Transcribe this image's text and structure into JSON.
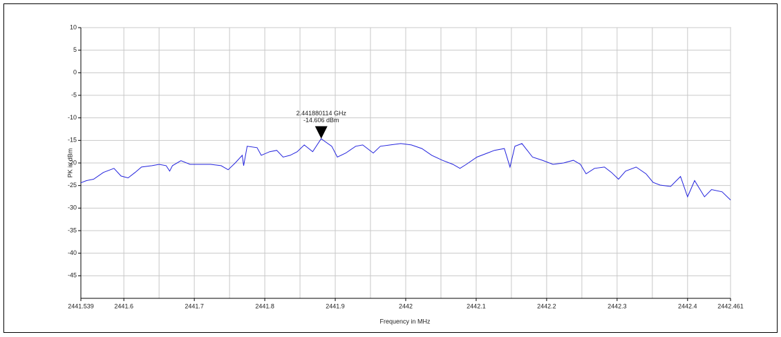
{
  "chart_data": {
    "type": "line",
    "xlabel": "Frequency in MHz",
    "ylabel": "PK in dBm",
    "xlim": [
      2441.539,
      2442.461
    ],
    "ylim": [
      -50,
      10
    ],
    "xticks": [
      2441.539,
      2441.6,
      2441.7,
      2441.8,
      2441.9,
      2442,
      2442.1,
      2442.2,
      2442.3,
      2442.4,
      2442.461
    ],
    "yticks": [
      10,
      5,
      0,
      -5,
      -10,
      -15,
      -20,
      -25,
      -30,
      -35,
      -40,
      -45
    ],
    "grid": true,
    "series": [
      {
        "color": "#2222dd",
        "x": [
          2441.539,
          2441.547,
          2441.557,
          2441.571,
          2441.586,
          2441.596,
          2441.606,
          2441.616,
          2441.625,
          2441.64,
          2441.65,
          2441.66,
          2441.665,
          2441.669,
          2441.681,
          2441.694,
          2441.709,
          2441.723,
          2441.738,
          2441.748,
          2441.758,
          2441.768,
          2441.77,
          2441.775,
          2441.789,
          2441.795,
          2441.807,
          2441.817,
          2441.826,
          2441.836,
          2441.846,
          2441.856,
          2441.868,
          2441.88,
          2441.885,
          2441.895,
          2441.903,
          2441.915,
          2441.929,
          2441.939,
          2441.954,
          2441.964,
          2441.978,
          2441.993,
          2442.008,
          2442.023,
          2442.037,
          2442.052,
          2442.067,
          2442.077,
          2442.086,
          2442.101,
          2442.116,
          2442.126,
          2442.14,
          2442.148,
          2442.155,
          2442.165,
          2442.18,
          2442.194,
          2442.209,
          2442.224,
          2442.238,
          2442.248,
          2442.256,
          2442.268,
          2442.282,
          2442.292,
          2442.302,
          2442.312,
          2442.327,
          2442.341,
          2442.351,
          2442.361,
          2442.376,
          2442.39,
          2442.4,
          2442.41,
          2442.424,
          2442.434,
          2442.449,
          2442.461
        ],
        "values": [
          -24.4,
          -23.9,
          -23.6,
          -22.1,
          -21.2,
          -22.9,
          -23.3,
          -22.1,
          -20.9,
          -20.6,
          -20.3,
          -20.6,
          -21.8,
          -20.6,
          -19.5,
          -20.3,
          -20.3,
          -20.3,
          -20.6,
          -21.5,
          -20,
          -18.3,
          -20.6,
          -16.3,
          -16.6,
          -18.3,
          -17.5,
          -17.2,
          -18.7,
          -18.3,
          -17.5,
          -16,
          -17.5,
          -14.606,
          -15.2,
          -16.3,
          -18.7,
          -17.8,
          -16.3,
          -16,
          -17.8,
          -16.3,
          -16,
          -15.7,
          -16,
          -16.8,
          -18.3,
          -19.4,
          -20.3,
          -21.2,
          -20.3,
          -18.7,
          -17.8,
          -17.2,
          -16.8,
          -20.9,
          -16.3,
          -15.7,
          -18.7,
          -19.4,
          -20.3,
          -20,
          -19.4,
          -20.3,
          -22.4,
          -21.2,
          -20.9,
          -22.1,
          -23.6,
          -21.8,
          -20.9,
          -22.4,
          -24.3,
          -24.9,
          -25.2,
          -23,
          -27.5,
          -23.9,
          -27.5,
          -25.9,
          -26.4,
          -28.2
        ]
      }
    ],
    "marker": {
      "x": 2441.880114,
      "y": -14.606,
      "label_freq": "2.441880114 GHz",
      "label_level": "-14.606 dBm"
    }
  }
}
